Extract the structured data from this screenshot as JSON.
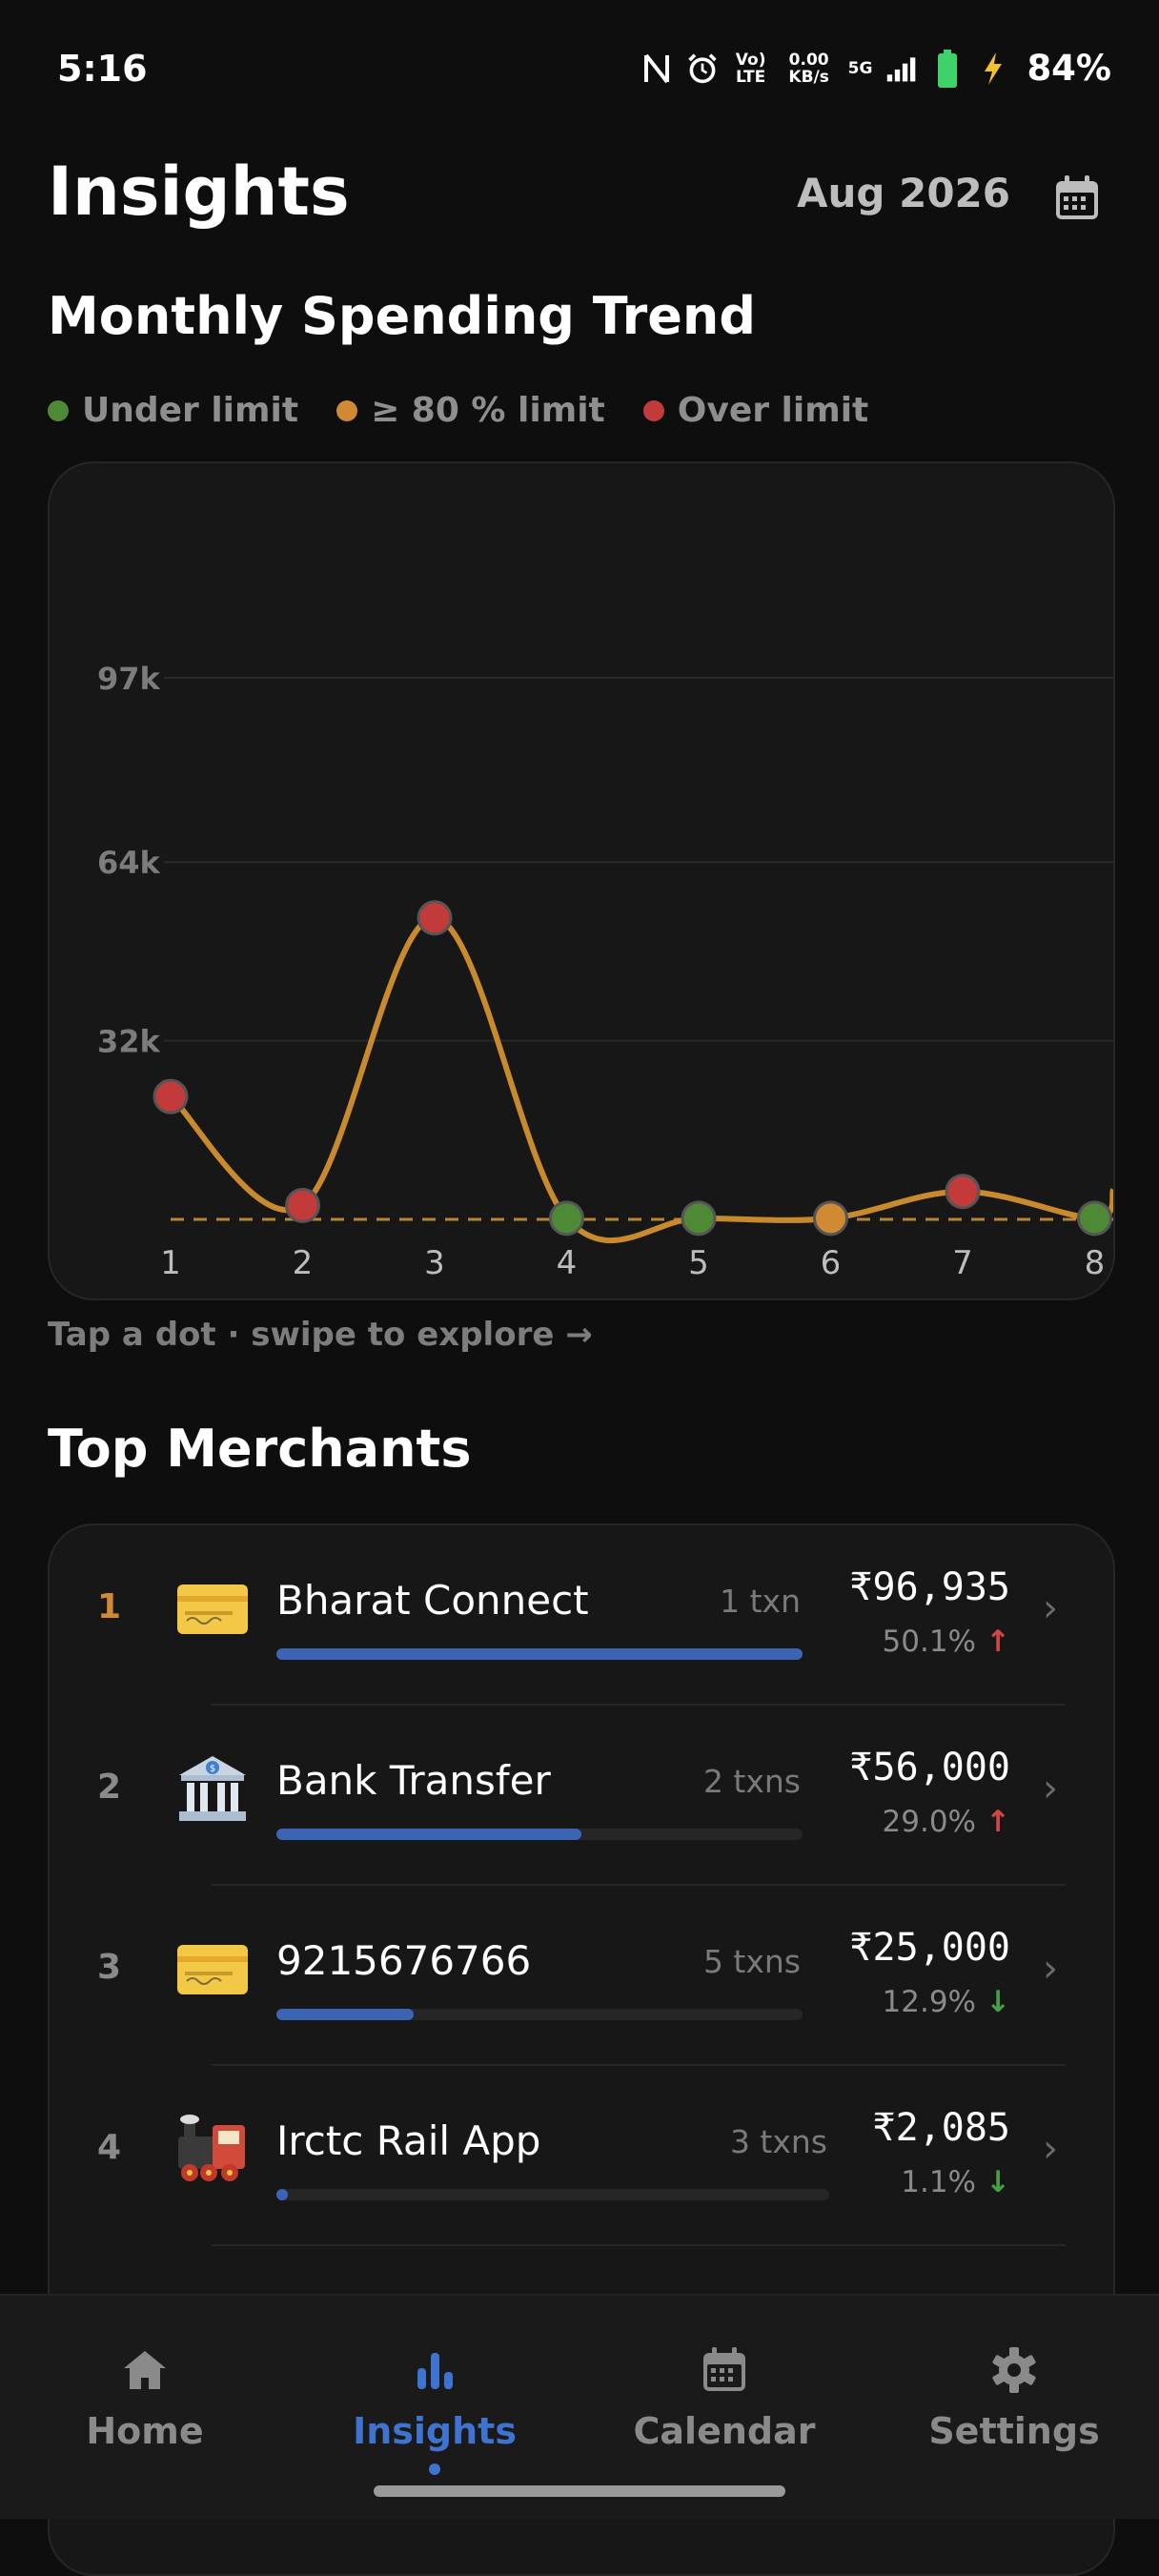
{
  "status_bar": {
    "time": "5:16",
    "volte": "Vo) LTE",
    "speed": "0.00 KB/s",
    "network": "5G",
    "battery": "84%"
  },
  "header": {
    "title": "Insights",
    "month": "Aug 2026"
  },
  "trend_section": {
    "title": "Monthly Spending Trend",
    "legend": [
      {
        "label": "Under limit",
        "color": "#4e8a36"
      },
      {
        "label": "≥ 80 % limit",
        "color": "#d08a33"
      },
      {
        "label": "Over limit",
        "color": "#c33a3a"
      }
    ],
    "hint": "Tap a dot · swipe to explore →"
  },
  "chart_data": {
    "type": "line",
    "x": [
      1,
      2,
      3,
      4,
      5,
      6,
      7,
      8
    ],
    "values": [
      22000,
      2500,
      54000,
      200,
      200,
      200,
      5000,
      200
    ],
    "status": [
      "over",
      "over",
      "over",
      "under",
      "under",
      "near",
      "over",
      "under"
    ],
    "ytick_labels": [
      "32k",
      "64k",
      "97k"
    ],
    "yticks": [
      32000,
      64000,
      97000
    ],
    "ylim": [
      0,
      97000
    ],
    "limit_value": 0,
    "grid": true,
    "colors": {
      "line": "#c98a2e",
      "limit_line": "#b8862e",
      "over": "#c33a3a",
      "near": "#d08a33",
      "under": "#4e8a36"
    }
  },
  "merchants": {
    "title": "Top Merchants",
    "items": [
      {
        "rank": "1",
        "icon": "credit-card-icon",
        "name": "Bharat Connect",
        "txns": "1 txn",
        "amount": "₹96,935",
        "pct": "50.1%",
        "trend": "up",
        "share": 1.0
      },
      {
        "rank": "2",
        "icon": "bank-icon",
        "name": "Bank Transfer",
        "txns": "2 txns",
        "amount": "₹56,000",
        "pct": "29.0%",
        "trend": "up",
        "share": 0.58
      },
      {
        "rank": "3",
        "icon": "credit-card-icon",
        "name": "9215676766",
        "txns": "5 txns",
        "amount": "₹25,000",
        "pct": "12.9%",
        "trend": "down",
        "share": 0.26
      },
      {
        "rank": "4",
        "icon": "train-icon",
        "name": "Irctc Rail App",
        "txns": "3 txns",
        "amount": "₹2,085",
        "pct": "1.1%",
        "trend": "down",
        "share": 0.02
      }
    ]
  },
  "nav": {
    "items": [
      {
        "label": "Home",
        "icon": "home-icon"
      },
      {
        "label": "Insights",
        "icon": "bar-chart-icon",
        "active": true
      },
      {
        "label": "Calendar",
        "icon": "calendar-icon"
      },
      {
        "label": "Settings",
        "icon": "gear-icon"
      }
    ]
  }
}
